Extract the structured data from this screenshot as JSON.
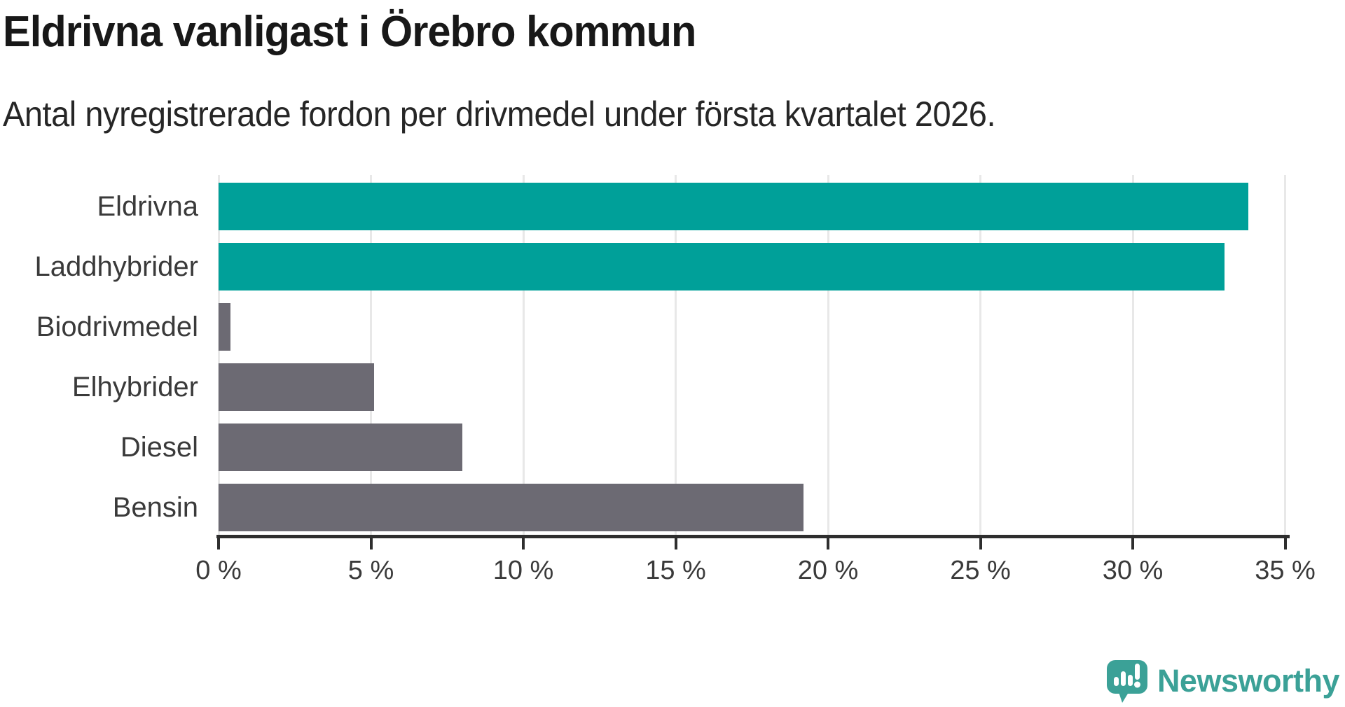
{
  "title": "Eldrivna vanligast i Örebro kommun",
  "subtitle": "Antal nyregistrerade fordon per drivmedel under första kvartalet 2026.",
  "branding": {
    "name": "Newsworthy",
    "logo_icon": "newsworthy-speech-bubble-bar-chart-icon",
    "color": "#3ba197"
  },
  "chart_data": {
    "type": "bar",
    "orientation": "horizontal",
    "categories": [
      "Eldrivna",
      "Laddhybrider",
      "Biodrivmedel",
      "Elhybrider",
      "Diesel",
      "Bensin"
    ],
    "values": [
      33.8,
      33.0,
      0.4,
      5.1,
      8.0,
      19.2
    ],
    "unit": "%",
    "bar_colors": [
      "#00a099",
      "#00a099",
      "#6c6a73",
      "#6c6a73",
      "#6c6a73",
      "#6c6a73"
    ],
    "highlight_color": "#00a099",
    "default_color": "#6c6a73",
    "xlim": [
      0,
      35
    ],
    "x_ticks": [
      0,
      5,
      10,
      15,
      20,
      25,
      30,
      35
    ],
    "x_tick_suffix": " %",
    "grid": true,
    "gridline_color": "#e8e8e8",
    "axis_color": "#2e2e2e",
    "label_color": "#3a3a3a",
    "legend": "none",
    "title": "Eldrivna vanligast i Örebro kommun",
    "xlabel": "",
    "ylabel": ""
  }
}
